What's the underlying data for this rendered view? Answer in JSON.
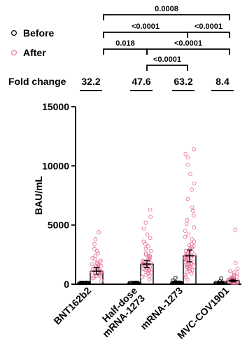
{
  "chart_data": {
    "type": "scatter",
    "ylabel": "BAU/mL",
    "ylim": [
      0,
      15000
    ],
    "yticks": [
      0,
      5000,
      10000,
      15000
    ],
    "grid": false,
    "legend_placement": "top-left",
    "categories": [
      "BNT162b2",
      "Half-dose mRNA-1273",
      "mRNA-1273",
      "MVC-COV1901"
    ],
    "category_lines": [
      [
        "BNT162b2"
      ],
      [
        "Half-dose",
        "mRNA-1273"
      ],
      [
        "mRNA-1273"
      ],
      [
        "MVC-COV1901"
      ]
    ],
    "fold_change_label": "Fold change",
    "fold_change": [
      "32.2",
      "47.6",
      "63.2",
      "8.4"
    ],
    "series": [
      {
        "name": "Before",
        "color": "#000000",
        "means": [
          35,
          35,
          38,
          45
        ],
        "points": [
          [
            40,
            30,
            60,
            20,
            50,
            80,
            35,
            25,
            70,
            45,
            15,
            55,
            90,
            30,
            40,
            65,
            20,
            50,
            35,
            75
          ],
          [
            30,
            50,
            20,
            70,
            40,
            60,
            25,
            80,
            35,
            45,
            55,
            15,
            65,
            30,
            50,
            40,
            20,
            60,
            35
          ],
          [
            30,
            60,
            20,
            50,
            90,
            40,
            70,
            25,
            55,
            35,
            80,
            45,
            15,
            65,
            30,
            100,
            50,
            20,
            40,
            60,
            75,
            35,
            45,
            120,
            25,
            150,
            55,
            200,
            40,
            550,
            300
          ],
          [
            40,
            60,
            30,
            80,
            50,
            100,
            20,
            70,
            150,
            45,
            35,
            90,
            500,
            250
          ]
        ]
      },
      {
        "name": "After",
        "color": "#e8759b",
        "means": [
          1100,
          1700,
          2400,
          300
        ],
        "ci": [
          [
            850,
            1400
          ],
          [
            1400,
            2000
          ],
          [
            1900,
            2900
          ],
          [
            200,
            420
          ]
        ],
        "points": [
          [
            300,
            500,
            700,
            800,
            900,
            1000,
            1100,
            1200,
            1300,
            1400,
            1500,
            1600,
            1700,
            1800,
            2000,
            2200,
            2400,
            2600,
            2800,
            3000,
            3400,
            3800,
            4400,
            600,
            1000,
            1250,
            1550,
            900,
            1150,
            1900,
            700,
            2100,
            1350,
            1050,
            1700
          ],
          [
            400,
            600,
            800,
            900,
            1000,
            1100,
            1200,
            1300,
            1400,
            1500,
            1600,
            1700,
            1800,
            1900,
            2000,
            2100,
            2200,
            2300,
            2400,
            2500,
            2600,
            2800,
            3000,
            3200,
            3400,
            3600,
            3900,
            4200,
            4700,
            5200,
            5700,
            6300,
            1250,
            1450,
            1650,
            1850,
            2050,
            2350,
            1550,
            1750,
            700,
            1150
          ],
          [
            400,
            600,
            800,
            900,
            1000,
            1100,
            1200,
            1300,
            1400,
            1500,
            1600,
            1700,
            1800,
            1900,
            2000,
            2100,
            2200,
            2300,
            2400,
            2500,
            2600,
            2700,
            2800,
            2900,
            3000,
            3200,
            3400,
            3600,
            3800,
            4000,
            4200,
            4500,
            4800,
            5100,
            5400,
            5800,
            6200,
            6500,
            7200,
            8000,
            8500,
            9300,
            10100,
            10700,
            11000,
            11400,
            1450,
            1650,
            1850,
            2050,
            2250,
            2450,
            2650,
            1350,
            1550,
            1750,
            2150,
            2350,
            3100,
            3300
          ],
          [
            50,
            80,
            100,
            120,
            150,
            180,
            200,
            220,
            250,
            280,
            300,
            320,
            350,
            380,
            400,
            450,
            500,
            550,
            600,
            650,
            700,
            800,
            900,
            1000,
            1100,
            1300,
            1800,
            4600,
            260,
            340,
            420,
            130
          ]
        ]
      }
    ],
    "comparisons": [
      {
        "label": "0.0008",
        "from": 0,
        "to": 3
      },
      {
        "label": "<0.0001",
        "from": 0,
        "to": 2
      },
      {
        "label": "<0.0001",
        "from": 2,
        "to": 3
      },
      {
        "label": "0.018",
        "from": 0,
        "to": 1
      },
      {
        "label": "<0.0001",
        "from": 1,
        "to": 3
      },
      {
        "label": "<0.0001",
        "from": 1,
        "to": 2
      }
    ]
  }
}
